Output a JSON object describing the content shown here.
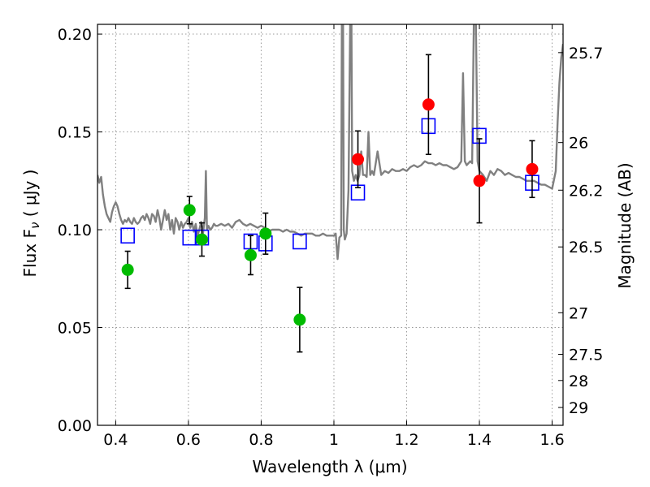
{
  "chart_data": {
    "type": "scatter",
    "title": "",
    "xlabel": "Wavelength  λ (μm)",
    "ylabel": "Flux  F",
    "ylabel_sub": "ν",
    "ylabel_unit": " ( μJy )",
    "ylabel_right": "Magnitude (AB)",
    "xlim": [
      0.35,
      1.63
    ],
    "ylim": [
      0.0,
      0.205
    ],
    "grid": true,
    "x_ticks": [
      0.4,
      0.6,
      0.8,
      1.0,
      1.2,
      1.4,
      1.6
    ],
    "x_tick_labels": [
      "0.4",
      "0.6",
      "0.8",
      "1",
      "1.2",
      "1.4",
      "1.6"
    ],
    "y_ticks": [
      0.0,
      0.05,
      0.1,
      0.15,
      0.2
    ],
    "y_tick_labels": [
      "0.00",
      "0.05",
      "0.10",
      "0.15",
      "0.20"
    ],
    "right_ticks": [
      {
        "mag": 25.7,
        "label": "25.7"
      },
      {
        "mag": 26,
        "label": "26"
      },
      {
        "mag": 26.2,
        "label": "26.2"
      },
      {
        "mag": 26.5,
        "label": "26.5"
      },
      {
        "mag": 27,
        "label": "27"
      },
      {
        "mag": 27.5,
        "label": "27.5"
      },
      {
        "mag": 28,
        "label": "28"
      },
      {
        "mag": 29,
        "label": "29"
      }
    ],
    "colors": {
      "spectrum": "#808080",
      "model": "#0000ff",
      "green": "#00bb00",
      "red": "#ff0000",
      "errorbar": "#000000",
      "grid": "#999999"
    },
    "series": [
      {
        "kind": "line",
        "points": [
          [
            0.35,
            0.128
          ],
          [
            0.355,
            0.124
          ],
          [
            0.36,
            0.127
          ],
          [
            0.365,
            0.118
          ],
          [
            0.37,
            0.112
          ],
          [
            0.375,
            0.108
          ],
          [
            0.38,
            0.106
          ],
          [
            0.385,
            0.104
          ],
          [
            0.39,
            0.109
          ],
          [
            0.395,
            0.112
          ],
          [
            0.4,
            0.114
          ],
          [
            0.405,
            0.112
          ],
          [
            0.41,
            0.108
          ],
          [
            0.415,
            0.105
          ],
          [
            0.42,
            0.103
          ],
          [
            0.425,
            0.105
          ],
          [
            0.43,
            0.104
          ],
          [
            0.435,
            0.106
          ],
          [
            0.44,
            0.104
          ],
          [
            0.445,
            0.103
          ],
          [
            0.45,
            0.106
          ],
          [
            0.455,
            0.104
          ],
          [
            0.46,
            0.103
          ],
          [
            0.465,
            0.104
          ],
          [
            0.47,
            0.106
          ],
          [
            0.475,
            0.107
          ],
          [
            0.48,
            0.105
          ],
          [
            0.485,
            0.108
          ],
          [
            0.49,
            0.106
          ],
          [
            0.495,
            0.103
          ],
          [
            0.5,
            0.108
          ],
          [
            0.505,
            0.107
          ],
          [
            0.51,
            0.104
          ],
          [
            0.515,
            0.11
          ],
          [
            0.52,
            0.106
          ],
          [
            0.525,
            0.1
          ],
          [
            0.53,
            0.105
          ],
          [
            0.535,
            0.11
          ],
          [
            0.54,
            0.105
          ],
          [
            0.545,
            0.108
          ],
          [
            0.55,
            0.1
          ],
          [
            0.555,
            0.105
          ],
          [
            0.56,
            0.098
          ],
          [
            0.565,
            0.106
          ],
          [
            0.57,
            0.104
          ],
          [
            0.575,
            0.1
          ],
          [
            0.58,
            0.104
          ],
          [
            0.585,
            0.101
          ],
          [
            0.59,
            0.103
          ],
          [
            0.595,
            0.104
          ],
          [
            0.6,
            0.106
          ],
          [
            0.605,
            0.101
          ],
          [
            0.61,
            0.104
          ],
          [
            0.615,
            0.099
          ],
          [
            0.62,
            0.103
          ],
          [
            0.625,
            0.097
          ],
          [
            0.63,
            0.1
          ],
          [
            0.635,
            0.104
          ],
          [
            0.64,
            0.098
          ],
          [
            0.645,
            0.106
          ],
          [
            0.648,
            0.13
          ],
          [
            0.651,
            0.1
          ],
          [
            0.655,
            0.102
          ],
          [
            0.66,
            0.1
          ],
          [
            0.665,
            0.101
          ],
          [
            0.67,
            0.103
          ],
          [
            0.675,
            0.102
          ],
          [
            0.68,
            0.102
          ],
          [
            0.69,
            0.103
          ],
          [
            0.7,
            0.102
          ],
          [
            0.71,
            0.103
          ],
          [
            0.72,
            0.101
          ],
          [
            0.73,
            0.104
          ],
          [
            0.74,
            0.105
          ],
          [
            0.75,
            0.103
          ],
          [
            0.76,
            0.102
          ],
          [
            0.77,
            0.103
          ],
          [
            0.78,
            0.102
          ],
          [
            0.79,
            0.101
          ],
          [
            0.8,
            0.102
          ],
          [
            0.81,
            0.101
          ],
          [
            0.82,
            0.099
          ],
          [
            0.83,
            0.1
          ],
          [
            0.84,
            0.1
          ],
          [
            0.85,
            0.1
          ],
          [
            0.86,
            0.099
          ],
          [
            0.87,
            0.1
          ],
          [
            0.88,
            0.099
          ],
          [
            0.89,
            0.099
          ],
          [
            0.9,
            0.098
          ],
          [
            0.91,
            0.097
          ],
          [
            0.92,
            0.098
          ],
          [
            0.93,
            0.098
          ],
          [
            0.94,
            0.098
          ],
          [
            0.95,
            0.097
          ],
          [
            0.96,
            0.097
          ],
          [
            0.97,
            0.098
          ],
          [
            0.98,
            0.097
          ],
          [
            0.99,
            0.097
          ],
          [
            1.0,
            0.097
          ],
          [
            1.005,
            0.098
          ],
          [
            1.01,
            0.085
          ],
          [
            1.015,
            0.096
          ],
          [
            1.02,
            0.097
          ],
          [
            1.022,
            0.21
          ],
          [
            1.025,
            0.21
          ],
          [
            1.027,
            0.1
          ],
          [
            1.03,
            0.095
          ],
          [
            1.035,
            0.098
          ],
          [
            1.04,
            0.12
          ],
          [
            1.045,
            0.21
          ],
          [
            1.048,
            0.21
          ],
          [
            1.05,
            0.13
          ],
          [
            1.055,
            0.125
          ],
          [
            1.06,
            0.128
          ],
          [
            1.065,
            0.125
          ],
          [
            1.07,
            0.128
          ],
          [
            1.075,
            0.14
          ],
          [
            1.08,
            0.128
          ],
          [
            1.085,
            0.128
          ],
          [
            1.09,
            0.127
          ],
          [
            1.095,
            0.15
          ],
          [
            1.1,
            0.128
          ],
          [
            1.105,
            0.13
          ],
          [
            1.11,
            0.128
          ],
          [
            1.12,
            0.14
          ],
          [
            1.13,
            0.128
          ],
          [
            1.14,
            0.13
          ],
          [
            1.15,
            0.129
          ],
          [
            1.16,
            0.131
          ],
          [
            1.17,
            0.13
          ],
          [
            1.18,
            0.13
          ],
          [
            1.19,
            0.131
          ],
          [
            1.2,
            0.13
          ],
          [
            1.21,
            0.132
          ],
          [
            1.22,
            0.133
          ],
          [
            1.23,
            0.132
          ],
          [
            1.24,
            0.133
          ],
          [
            1.25,
            0.135
          ],
          [
            1.26,
            0.134
          ],
          [
            1.27,
            0.134
          ],
          [
            1.28,
            0.133
          ],
          [
            1.29,
            0.134
          ],
          [
            1.3,
            0.133
          ],
          [
            1.31,
            0.133
          ],
          [
            1.32,
            0.132
          ],
          [
            1.33,
            0.131
          ],
          [
            1.34,
            0.132
          ],
          [
            1.35,
            0.135
          ],
          [
            1.355,
            0.18
          ],
          [
            1.36,
            0.135
          ],
          [
            1.365,
            0.133
          ],
          [
            1.37,
            0.134
          ],
          [
            1.375,
            0.135
          ],
          [
            1.38,
            0.134
          ],
          [
            1.385,
            0.21
          ],
          [
            1.39,
            0.21
          ],
          [
            1.395,
            0.135
          ],
          [
            1.4,
            0.13
          ],
          [
            1.41,
            0.128
          ],
          [
            1.42,
            0.125
          ],
          [
            1.43,
            0.13
          ],
          [
            1.44,
            0.128
          ],
          [
            1.45,
            0.131
          ],
          [
            1.46,
            0.13
          ],
          [
            1.47,
            0.128
          ],
          [
            1.48,
            0.129
          ],
          [
            1.49,
            0.128
          ],
          [
            1.5,
            0.127
          ],
          [
            1.51,
            0.127
          ],
          [
            1.52,
            0.126
          ],
          [
            1.53,
            0.125
          ],
          [
            1.54,
            0.125
          ],
          [
            1.55,
            0.125
          ],
          [
            1.56,
            0.124
          ],
          [
            1.57,
            0.123
          ],
          [
            1.58,
            0.123
          ],
          [
            1.59,
            0.122
          ],
          [
            1.6,
            0.121
          ],
          [
            1.61,
            0.13
          ],
          [
            1.615,
            0.155
          ],
          [
            1.62,
            0.175
          ],
          [
            1.625,
            0.188
          ],
          [
            1.63,
            0.195
          ]
        ]
      },
      {
        "kind": "model_squares",
        "points": [
          [
            0.433,
            0.097
          ],
          [
            0.603,
            0.096
          ],
          [
            0.637,
            0.096
          ],
          [
            0.771,
            0.094
          ],
          [
            0.812,
            0.093
          ],
          [
            0.906,
            0.094
          ],
          [
            1.066,
            0.119
          ],
          [
            1.26,
            0.153
          ],
          [
            1.4,
            0.148
          ],
          [
            1.545,
            0.124
          ]
        ]
      },
      {
        "kind": "green_points",
        "points": [
          [
            0.433,
            0.0795,
            0.0095
          ],
          [
            0.603,
            0.11,
            0.007
          ],
          [
            0.637,
            0.095,
            0.0085
          ],
          [
            0.771,
            0.087,
            0.01
          ],
          [
            0.812,
            0.098,
            0.0105
          ],
          [
            0.906,
            0.054,
            0.0165
          ]
        ]
      },
      {
        "kind": "red_points",
        "points": [
          [
            1.066,
            0.136,
            0.0145
          ],
          [
            1.26,
            0.164,
            0.0255
          ],
          [
            1.4,
            0.125,
            0.0215
          ],
          [
            1.545,
            0.131,
            0.0145
          ]
        ]
      }
    ]
  }
}
